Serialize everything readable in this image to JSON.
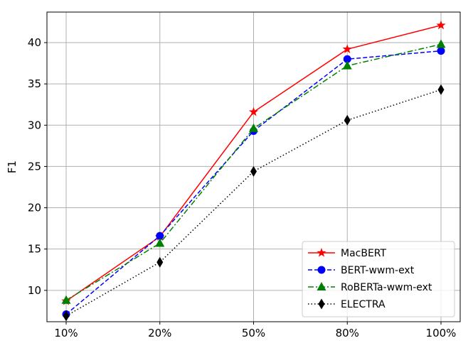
{
  "chart_data": {
    "type": "line",
    "title": "",
    "xlabel": "",
    "ylabel": "F1",
    "categories": [
      "10%",
      "20%",
      "50%",
      "80%",
      "100%"
    ],
    "ylim": [
      6.2,
      43.7
    ],
    "yticks": [
      10,
      15,
      20,
      25,
      30,
      35,
      40
    ],
    "grid": true,
    "legend_position": "lower-right",
    "series": [
      {
        "name": "MacBERT",
        "values": [
          8.7,
          16.5,
          31.6,
          39.2,
          42.1
        ],
        "color": "#ff0000",
        "linestyle": "solid",
        "marker": "star"
      },
      {
        "name": "BERT-wwm-ext",
        "values": [
          7.1,
          16.6,
          29.3,
          38.0,
          39.0
        ],
        "color": "#0000ff",
        "linestyle": "dashed",
        "marker": "circle"
      },
      {
        "name": "RoBERTa-wwm-ext",
        "values": [
          8.8,
          15.7,
          29.6,
          37.2,
          39.8
        ],
        "color": "#008000",
        "linestyle": "dashdot",
        "marker": "triangle"
      },
      {
        "name": "ELECTRA",
        "values": [
          6.9,
          13.4,
          24.4,
          30.6,
          34.3
        ],
        "color": "#000000",
        "linestyle": "dotted",
        "marker": "diamond"
      }
    ]
  }
}
